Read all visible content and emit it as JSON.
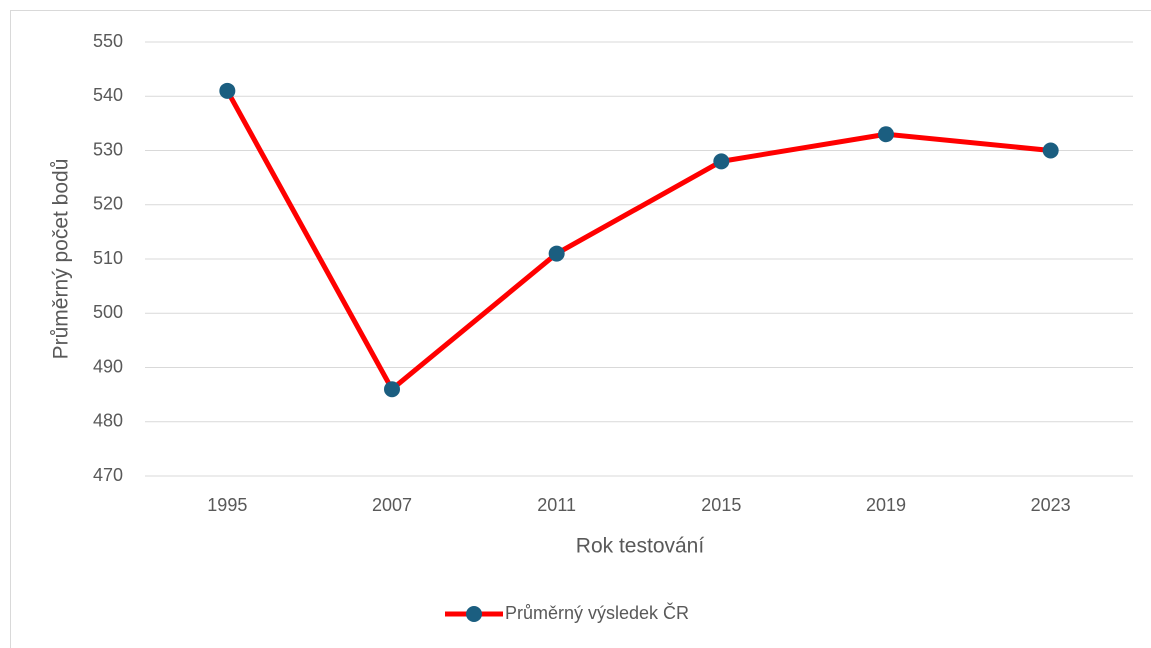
{
  "chart_data": {
    "type": "line",
    "categories": [
      "1995",
      "2007",
      "2011",
      "2015",
      "2019",
      "2023"
    ],
    "series": [
      {
        "name": "Průměrný výsledek ČR",
        "color": "#ff0000",
        "marker_color": "#1b5e80",
        "values": [
          541,
          486,
          511,
          528,
          533,
          530
        ]
      }
    ],
    "x_label": "Rok testování",
    "y_label": "Průměrný počet bodů",
    "ylim": [
      470,
      550
    ],
    "yticks": [
      470,
      480,
      490,
      500,
      510,
      520,
      530,
      540,
      550
    ],
    "grid": true,
    "legend": "bottom"
  }
}
